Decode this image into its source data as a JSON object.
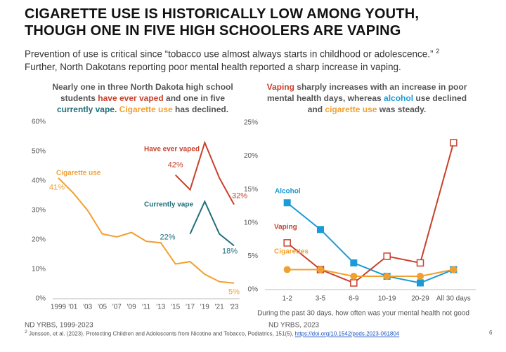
{
  "title": [
    "CIGARETTE USE IS HISTORICALLY LOW AMONG YOUTH,",
    "THOUGH ONE IN FIVE HIGH SCHOOLERS ARE VAPING"
  ],
  "subtitle": [
    "Prevention of use is critical since “tobacco use almost always starts in childhood or adolescence.”",
    "Further, North Dakotans reporting poor mental health reported a sharp increase in vaping."
  ],
  "subtitle_note": "2",
  "chart_data": [
    {
      "type": "line",
      "title_runs": [
        {
          "text": "Nearly one in three North Dakota high school students "
        },
        {
          "text": "have ever vaped",
          "color": "#c8412c"
        },
        {
          "text": " and one in five "
        },
        {
          "text": "currently vape.",
          "color": "#1f6e7a"
        },
        {
          "text": " "
        },
        {
          "text": "Cigarette use",
          "color": "#f0a030"
        },
        {
          "text": " has declined."
        }
      ],
      "xlim": [
        1999,
        2023
      ],
      "xticks": [
        {
          "value": 1999,
          "label": "1999"
        },
        {
          "value": 2001,
          "label": "'01"
        },
        {
          "value": 2003,
          "label": "'03"
        },
        {
          "value": 2005,
          "label": "'05"
        },
        {
          "value": 2007,
          "label": "'07"
        },
        {
          "value": 2009,
          "label": "'09"
        },
        {
          "value": 2011,
          "label": "'11"
        },
        {
          "value": 2013,
          "label": "'13"
        },
        {
          "value": 2015,
          "label": "'15"
        },
        {
          "value": 2017,
          "label": "'17"
        },
        {
          "value": 2019,
          "label": "'19"
        },
        {
          "value": 2021,
          "label": "'21"
        },
        {
          "value": 2023,
          "label": "'23"
        }
      ],
      "ylim": [
        0,
        60
      ],
      "yticks": [
        {
          "value": 0,
          "label": "0%"
        },
        {
          "value": 10,
          "label": "10%"
        },
        {
          "value": 20,
          "label": "20%"
        },
        {
          "value": 30,
          "label": "30%"
        },
        {
          "value": 40,
          "label": "40%"
        },
        {
          "value": 50,
          "label": "50%"
        },
        {
          "value": 60,
          "label": "60%"
        }
      ],
      "series": [
        {
          "name": "Cigarette use",
          "color": "#f0a030",
          "x": [
            1999,
            2001,
            2003,
            2005,
            2007,
            2009,
            2011,
            2013,
            2015,
            2017,
            2019,
            2021,
            2023
          ],
          "values": [
            41,
            36,
            30,
            22,
            21,
            22.5,
            19.5,
            19,
            11.8,
            12.6,
            8.3,
            5.8,
            5.3
          ],
          "value_labels": [
            "41%",
            null,
            null,
            null,
            null,
            null,
            null,
            null,
            null,
            null,
            null,
            null,
            "5%"
          ]
        },
        {
          "name": "Have ever vaped",
          "color": "#c8412c",
          "x": [
            2015,
            2017,
            2019,
            2021,
            2023
          ],
          "values": [
            42,
            37,
            53,
            41,
            32
          ],
          "value_labels": [
            "42%",
            null,
            null,
            null,
            "32%"
          ]
        },
        {
          "name": "Currently vape",
          "color": "#1f6e7a",
          "x": [
            2017,
            2019,
            2021,
            2023
          ],
          "values": [
            22,
            33,
            22,
            18
          ],
          "value_labels": [
            "22%",
            null,
            null,
            "18%"
          ]
        }
      ],
      "source": "ND YRBS, 1999-2023"
    },
    {
      "type": "line",
      "title_runs": [
        {
          "text": "Vaping",
          "color": "#c8412c"
        },
        {
          "text": " sharply increases with an increase in poor mental health days, whereas "
        },
        {
          "text": "alcohol",
          "color": "#1a9ad6"
        },
        {
          "text": " use declined and "
        },
        {
          "text": "cigarette use",
          "color": "#f0a030"
        },
        {
          "text": " was steady."
        }
      ],
      "categories": [
        "1-2",
        "3-5",
        "6-9",
        "10-19",
        "20-29",
        "All 30 days"
      ],
      "xlabel": "During the past 30 days, how often was your mental health not good",
      "ylim": [
        0,
        25
      ],
      "yticks": [
        {
          "value": 0,
          "label": "0%"
        },
        {
          "value": 5,
          "label": "5%"
        },
        {
          "value": 10,
          "label": "10%"
        },
        {
          "value": 15,
          "label": "15%"
        },
        {
          "value": 20,
          "label": "20%"
        },
        {
          "value": 25,
          "label": "25%"
        }
      ],
      "series": [
        {
          "name": "Alcohol",
          "color": "#1a9ad6",
          "marker": "square",
          "values": [
            13,
            9,
            4,
            2,
            1,
            3
          ]
        },
        {
          "name": "Vaping",
          "color": "#c8412c",
          "marker": "open-square",
          "values": [
            7,
            3,
            1,
            5,
            4,
            22
          ]
        },
        {
          "name": "Cigarettes",
          "color": "#f0a030",
          "marker": "circle",
          "values": [
            3,
            3,
            2,
            2,
            2,
            3
          ]
        }
      ],
      "source": "ND YRBS, 2023"
    }
  ],
  "footnote": {
    "marker": "2",
    "text": "Jenssen, et al. (2023). Protecting Children and Adolescents from Nicotine and Tobacco, Pediatrics, 151(5), ",
    "link": "https://doi.org/10.1542/peds.2023-061804"
  },
  "page_number": "6"
}
